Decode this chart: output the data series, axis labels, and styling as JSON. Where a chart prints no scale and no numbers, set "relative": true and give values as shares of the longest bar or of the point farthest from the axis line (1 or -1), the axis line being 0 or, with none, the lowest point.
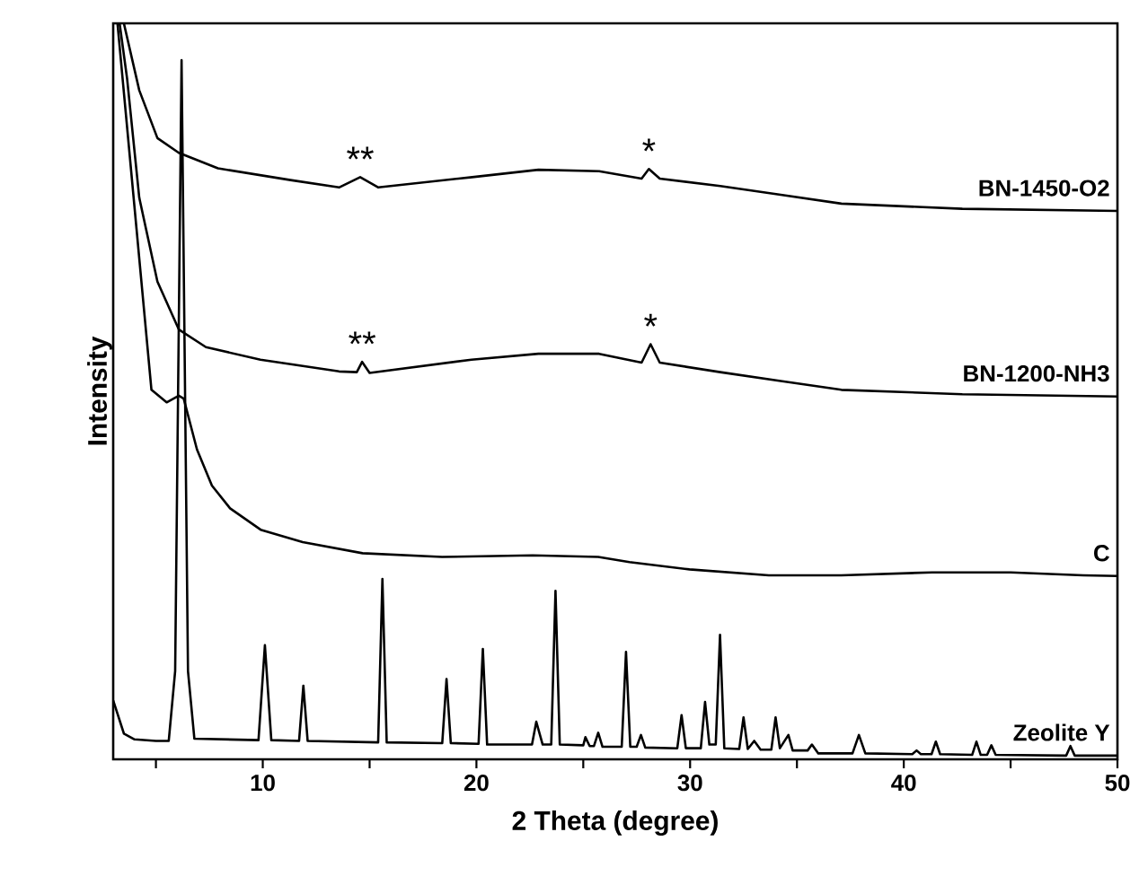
{
  "chart_data": {
    "type": "line",
    "relative": true,
    "xlabel": "2 Theta (degree)",
    "ylabel": "Intensity",
    "xlim": [
      3,
      50
    ],
    "xticks": [
      {
        "value": 5,
        "label": null
      },
      10,
      {
        "value": 15,
        "label": null
      },
      20,
      {
        "value": 25,
        "label": null
      },
      30,
      {
        "value": 35,
        "label": null
      },
      40,
      {
        "value": 45,
        "label": null
      },
      50
    ],
    "tick_labels": "x",
    "series": [
      {
        "name": "BN-1450-O2",
        "color": "#000000",
        "x": [
          3.5,
          4.22,
          5.07,
          6.07,
          7.9,
          11.3,
          13.57,
          14.56,
          15.41,
          19.8,
          22.9,
          25.74,
          27.73,
          28.07,
          28.58,
          31.41,
          34.24,
          37.08,
          42.74,
          50
        ],
        "values": [
          1.0,
          0.909,
          0.844,
          0.824,
          0.803,
          0.787,
          0.777,
          0.791,
          0.777,
          0.791,
          0.801,
          0.799,
          0.789,
          0.802,
          0.789,
          0.779,
          0.767,
          0.755,
          0.748,
          0.745
        ]
      },
      {
        "name": "BN-1200-NH3",
        "color": "#000000",
        "x": [
          3.3,
          3.65,
          4.22,
          5.07,
          6.07,
          7.34,
          9.89,
          13.57,
          14.4,
          14.65,
          15.0,
          19.77,
          22.9,
          25.74,
          27.73,
          28.15,
          28.58,
          31.41,
          34.24,
          37.08,
          42.74,
          50
        ],
        "values": [
          1.0,
          0.925,
          0.763,
          0.649,
          0.584,
          0.56,
          0.543,
          0.527,
          0.526,
          0.54,
          0.525,
          0.543,
          0.551,
          0.551,
          0.539,
          0.564,
          0.539,
          0.526,
          0.514,
          0.502,
          0.496,
          0.493
        ]
      },
      {
        "name": "C",
        "color": "#000000",
        "x": [
          3.2,
          4.79,
          5.5,
          6.07,
          6.3,
          6.92,
          7.62,
          8.47,
          9.9,
          11.87,
          14.67,
          18.39,
          22.63,
          25.7,
          27.16,
          29.97,
          33.68,
          37.08,
          41.33,
          45.0,
          48.4,
          50
        ],
        "values": [
          1.0,
          0.502,
          0.485,
          0.494,
          0.49,
          0.421,
          0.372,
          0.341,
          0.312,
          0.295,
          0.28,
          0.275,
          0.277,
          0.275,
          0.268,
          0.258,
          0.25,
          0.25,
          0.254,
          0.254,
          0.25,
          0.249
        ]
      },
      {
        "name": "Zeolite Y",
        "color": "#000000",
        "x": [
          3.0,
          3.5,
          4.0,
          5.0,
          5.6,
          5.9,
          6.2,
          6.5,
          6.8,
          9.8,
          10.1,
          10.4,
          11.7,
          11.9,
          12.1,
          15.4,
          15.6,
          15.8,
          18.4,
          18.6,
          18.8,
          20.1,
          20.3,
          20.5,
          21.5,
          22.6,
          22.8,
          23.1,
          23.5,
          23.7,
          23.9,
          25.0,
          25.1,
          25.3,
          25.5,
          25.7,
          25.9,
          26.8,
          27.0,
          27.2,
          27.5,
          27.7,
          27.9,
          29.4,
          29.6,
          29.8,
          30.5,
          30.7,
          30.9,
          31.2,
          31.4,
          31.6,
          32.3,
          32.5,
          32.7,
          33.0,
          33.3,
          33.8,
          34.0,
          34.2,
          34.6,
          34.8,
          35.5,
          35.7,
          36.0,
          37.6,
          37.9,
          38.2,
          40.4,
          40.6,
          40.8,
          41.3,
          41.5,
          41.7,
          43.2,
          43.4,
          43.6,
          43.9,
          44.1,
          44.3,
          47.6,
          47.8,
          48.0,
          50
        ],
        "values": [
          0.08,
          0.035,
          0.027,
          0.025,
          0.025,
          0.12,
          0.95,
          0.12,
          0.028,
          0.026,
          0.155,
          0.026,
          0.025,
          0.1,
          0.025,
          0.023,
          0.245,
          0.023,
          0.022,
          0.109,
          0.022,
          0.021,
          0.15,
          0.02,
          0.02,
          0.02,
          0.051,
          0.02,
          0.02,
          0.229,
          0.02,
          0.019,
          0.03,
          0.018,
          0.018,
          0.036,
          0.017,
          0.017,
          0.146,
          0.017,
          0.017,
          0.033,
          0.016,
          0.015,
          0.06,
          0.015,
          0.015,
          0.078,
          0.02,
          0.02,
          0.169,
          0.015,
          0.014,
          0.057,
          0.014,
          0.025,
          0.013,
          0.013,
          0.057,
          0.015,
          0.033,
          0.012,
          0.012,
          0.02,
          0.008,
          0.008,
          0.033,
          0.008,
          0.007,
          0.012,
          0.007,
          0.007,
          0.024,
          0.007,
          0.006,
          0.024,
          0.006,
          0.006,
          0.019,
          0.006,
          0.005,
          0.018,
          0.005,
          0.005
        ]
      }
    ],
    "annotations": [
      {
        "text": "**",
        "x": 14.56,
        "y": 0.791
      },
      {
        "text": "*",
        "x": 28.07,
        "y": 0.802
      },
      {
        "text": "**",
        "x": 14.65,
        "y": 0.54
      },
      {
        "text": "*",
        "x": 28.15,
        "y": 0.564
      }
    ]
  }
}
